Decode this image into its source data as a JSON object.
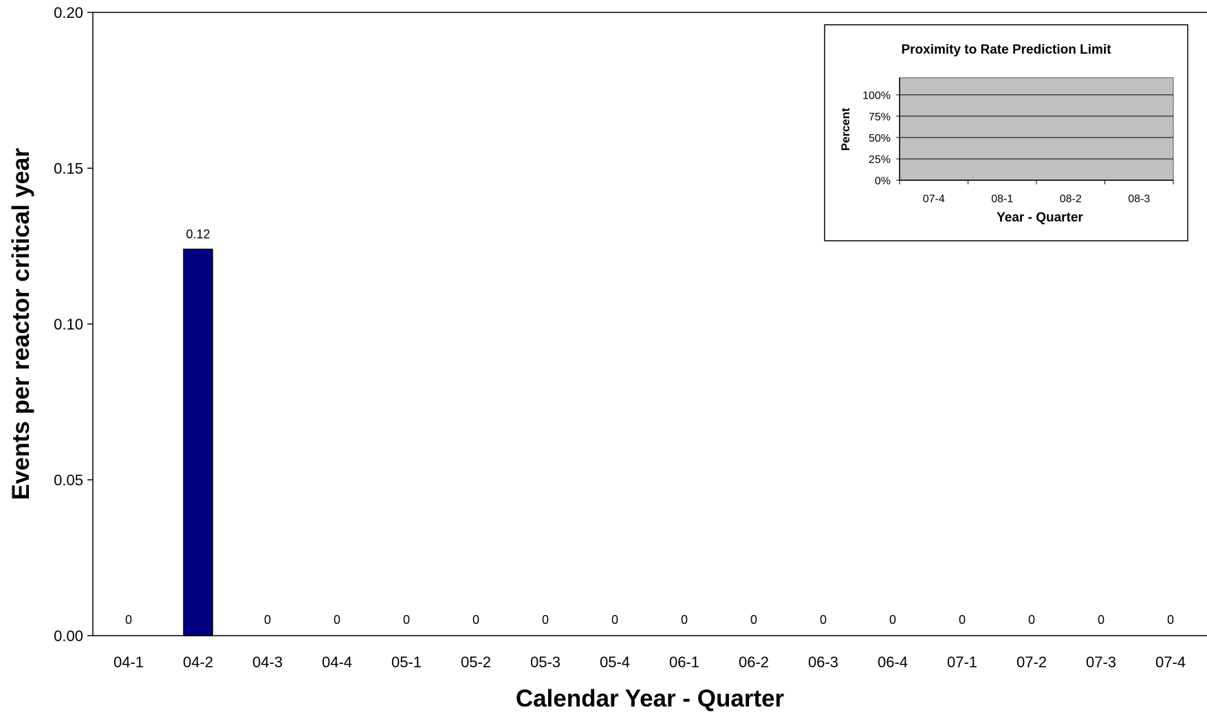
{
  "chart_data": [
    {
      "type": "bar",
      "title": "",
      "xlabel": "Calendar Year - Quarter",
      "ylabel": "Events per reactor critical year",
      "categories": [
        "04-1",
        "04-2",
        "04-3",
        "04-4",
        "05-1",
        "05-2",
        "05-3",
        "05-4",
        "06-1",
        "06-2",
        "06-3",
        "06-4",
        "07-1",
        "07-2",
        "07-3",
        "07-4"
      ],
      "values": [
        0,
        0.124,
        0,
        0,
        0,
        0,
        0,
        0,
        0,
        0,
        0,
        0,
        0,
        0,
        0,
        0
      ],
      "data_labels": [
        "0",
        "0.12",
        "0",
        "0",
        "0",
        "0",
        "0",
        "0",
        "0",
        "0",
        "0",
        "0",
        "0",
        "0",
        "0",
        "0"
      ],
      "ylim": [
        0,
        0.2
      ],
      "yticks": [
        "0.00",
        "0.05",
        "0.10",
        "0.15",
        "0.20"
      ],
      "bar_color": "#000080",
      "grid": false
    },
    {
      "type": "area",
      "title": "Proximity to Rate Prediction Limit",
      "xlabel": "Year - Quarter",
      "ylabel": "Percent",
      "categories": [
        "07-4",
        "08-1",
        "08-2",
        "08-3"
      ],
      "yticks": [
        "0%",
        "25%",
        "50%",
        "75%",
        "100%"
      ],
      "ylim": [
        0,
        1.2
      ],
      "plot_background": "#c0c0c0",
      "grid": true,
      "legend": "none"
    }
  ]
}
